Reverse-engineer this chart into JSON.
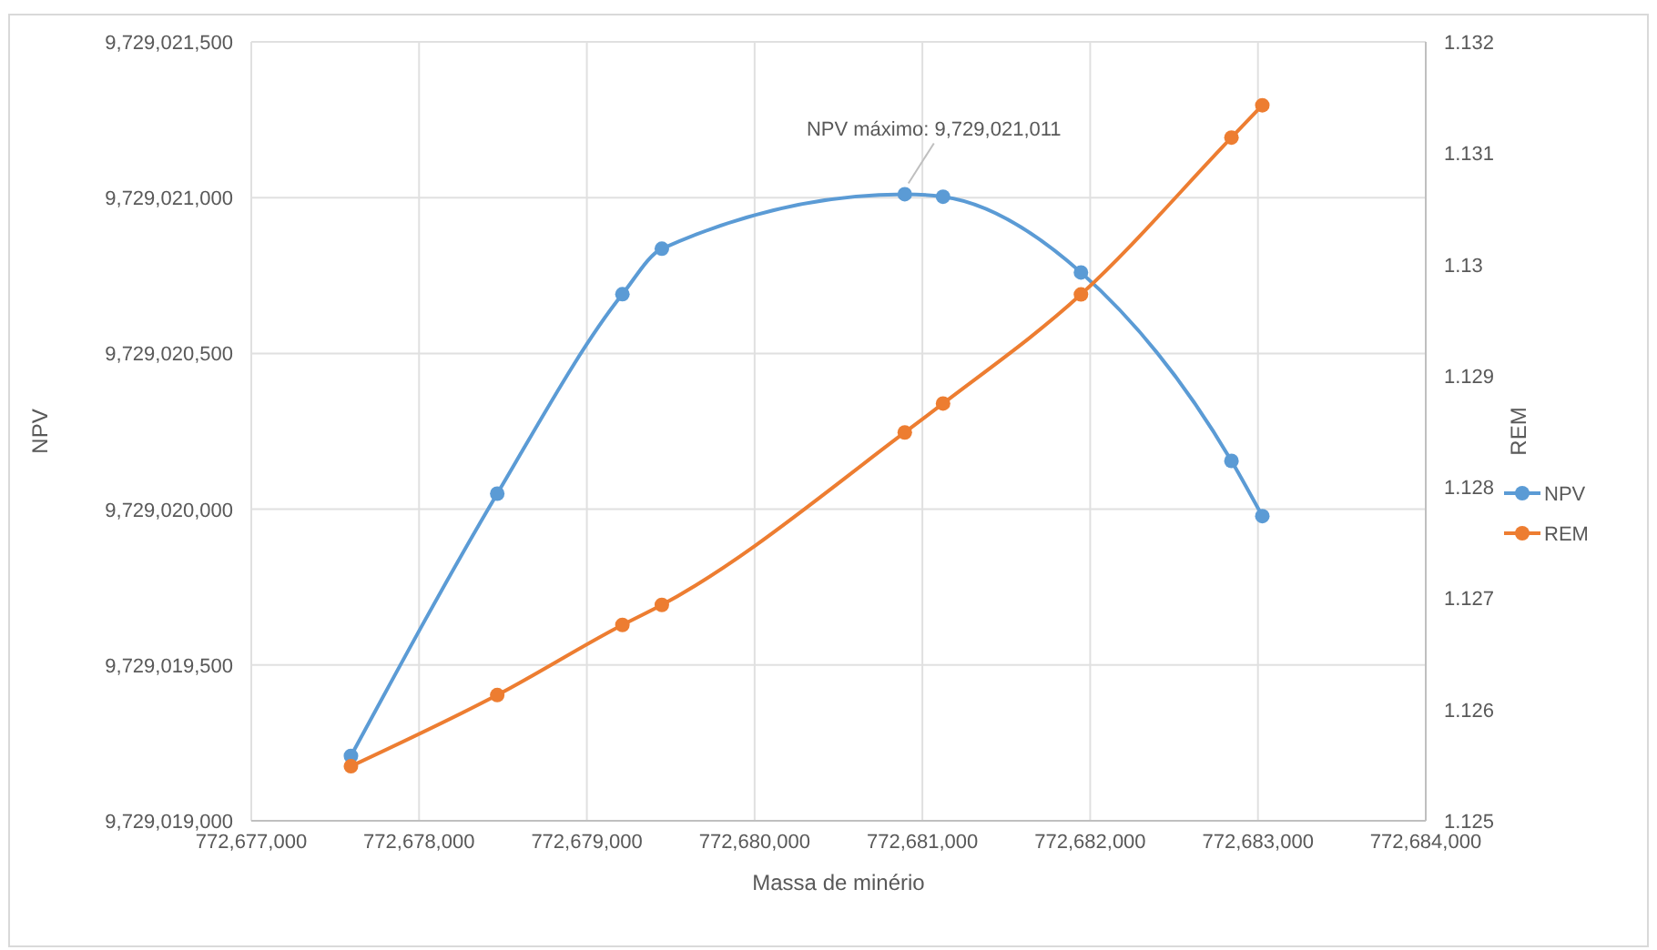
{
  "chart_data": {
    "type": "line",
    "xlabel": "Massa de minério",
    "ylabel": "NPV",
    "y2label": "REM",
    "x": [
      772677594,
      772678466,
      772679212,
      772679447,
      772680895,
      772681123,
      772681945,
      772682842,
      772683026
    ],
    "series": [
      {
        "name": "NPV",
        "color": "#5b9bd5",
        "values": [
          9729019208,
          9729020050,
          9729020690,
          9729020836,
          9729021011,
          9729021003,
          9729020760,
          9729020155,
          9729019978
        ]
      },
      {
        "name": "REM",
        "color": "#ed7d31",
        "axis": "y2",
        "values": [
          1.12549,
          1.12613,
          1.12676,
          1.12694,
          1.12849,
          1.12875,
          1.12973,
          1.13114,
          1.13143
        ]
      }
    ],
    "xlim": [
      772677000,
      772684000
    ],
    "xticks": [
      {
        "value": 772677000,
        "label": "772,677,000"
      },
      {
        "value": 772678000,
        "label": "772,678,000"
      },
      {
        "value": 772679000,
        "label": "772,679,000"
      },
      {
        "value": 772680000,
        "label": "772,680,000"
      },
      {
        "value": 772681000,
        "label": "772,681,000"
      },
      {
        "value": 772682000,
        "label": "772,682,000"
      },
      {
        "value": 772683000,
        "label": "772,683,000"
      },
      {
        "value": 772684000,
        "label": "772,684,000"
      }
    ],
    "ylim": [
      9729019000,
      9729021500
    ],
    "yticks": [
      {
        "value": 9729019000,
        "label": "9,729,019,000"
      },
      {
        "value": 9729019500,
        "label": "9,729,019,500"
      },
      {
        "value": 9729020000,
        "label": "9,729,020,000"
      },
      {
        "value": 9729020500,
        "label": "9,729,020,500"
      },
      {
        "value": 9729021000,
        "label": "9,729,021,000"
      },
      {
        "value": 9729021500,
        "label": "9,729,021,500"
      }
    ],
    "y2lim": [
      1.125,
      1.132
    ],
    "y2ticks": [
      1.125,
      1.126,
      1.127,
      1.128,
      1.129,
      1.13,
      1.131,
      1.132
    ],
    "annotations": [
      {
        "text": "NPV máximo: 9,729,021,011",
        "x": 772680895,
        "y": 9729021011
      }
    ],
    "grid": true,
    "legend": "right",
    "marker": "circle",
    "line_style": "solid"
  }
}
